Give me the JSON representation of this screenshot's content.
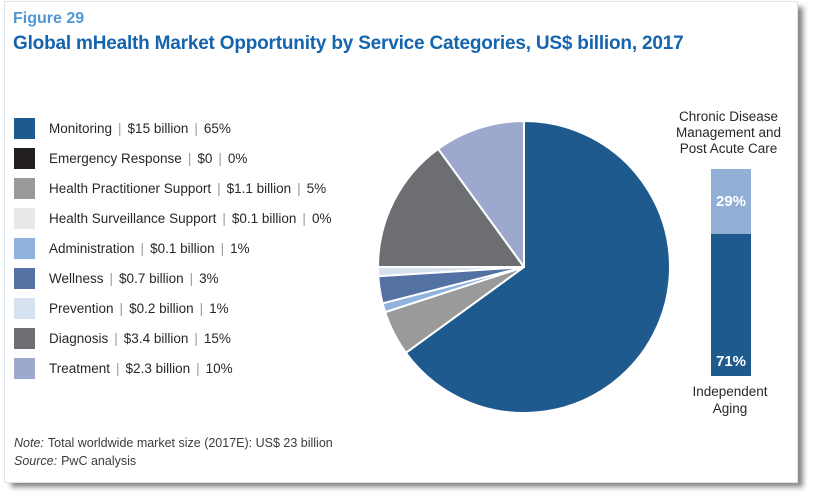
{
  "figure": {
    "label": "Figure 29",
    "title": "Global mHealth Market Opportunity by Service Categories, US$ billion, 2017"
  },
  "chart_data": [
    {
      "type": "pie",
      "title": "Global mHealth Market Opportunity by Service Categories, US$ billion, 2017",
      "unit": "US$ billion",
      "year": "2017",
      "start_angle": "12 o'clock, clockwise",
      "legend_position": "left",
      "slices": [
        {
          "label": "Monitoring",
          "value_label": "$15 billion",
          "value_billion": 15,
          "percent": 65,
          "color": "#1e5a8e"
        },
        {
          "label": "Emergency Response",
          "value_label": "$0",
          "value_billion": 0,
          "percent": 0,
          "color": "#231f20"
        },
        {
          "label": "Health Practitioner Support",
          "value_label": "$1.1 billion",
          "value_billion": 1.1,
          "percent": 5,
          "color": "#9a9a9a"
        },
        {
          "label": "Health Surveillance Support",
          "value_label": "$0.1 billion",
          "value_billion": 0.1,
          "percent": 0,
          "color": "#e8e8e8"
        },
        {
          "label": "Administration",
          "value_label": "$0.1 billion",
          "value_billion": 0.1,
          "percent": 1,
          "color": "#8fb3dc"
        },
        {
          "label": "Wellness",
          "value_label": "$0.7 billion",
          "value_billion": 0.7,
          "percent": 3,
          "color": "#5471a4"
        },
        {
          "label": "Prevention",
          "value_label": "$0.2 billion",
          "value_billion": 0.2,
          "percent": 1,
          "color": "#d7e2f1"
        },
        {
          "label": "Diagnosis",
          "value_label": "$3.4 billion",
          "value_billion": 3.4,
          "percent": 15,
          "color": "#6d6e71"
        },
        {
          "label": "Treatment",
          "value_label": "$2.3 billion",
          "value_billion": 2.3,
          "percent": 10,
          "color": "#9da8ce"
        }
      ]
    },
    {
      "type": "bar",
      "subtype": "stacked_percent_column",
      "ylim": [
        0,
        100
      ],
      "segments": [
        {
          "label": "Chronic Disease Management and Post Acute Care",
          "label_lines": [
            "Chronic Disease",
            "Management and",
            "Post Acute Care"
          ],
          "percent": 29,
          "percent_label": "29%",
          "color": "#92afd5",
          "label_position": "above"
        },
        {
          "label": "Independent Aging",
          "label_lines": [
            "Independent",
            "Aging"
          ],
          "percent": 71,
          "percent_label": "71%",
          "color": "#1e5a8e",
          "label_position": "below"
        }
      ]
    }
  ],
  "legend_separator": "|",
  "notes": {
    "note": {
      "prefix": "Note:",
      "text": "Total worldwide market size (2017E): US$ 23 billion"
    },
    "source": {
      "prefix": "Source:",
      "text": "PwC analysis"
    }
  },
  "colors": {
    "figure_label": "#4e97d6",
    "figure_title": "#1464ae",
    "body_text": "#29262a",
    "separator": "#9b9b9b",
    "note_text": "#3c3c3c",
    "card_border": "#dde5ec",
    "bar_percent_text": "#ffffff"
  }
}
